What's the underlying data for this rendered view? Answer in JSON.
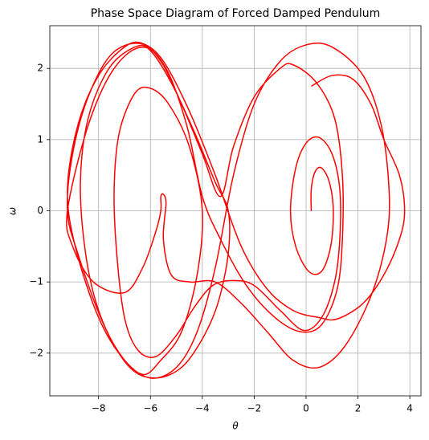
{
  "chart_data": {
    "type": "line",
    "title": "Phase Space Diagram of Forced Damped Pendulum",
    "xlabel": "θ",
    "ylabel": "ω",
    "xlim": [
      -9.88,
      4.43
    ],
    "ylim": [
      -2.6,
      2.6
    ],
    "xticks": [
      {
        "value": -8,
        "label": "−8"
      },
      {
        "value": -6,
        "label": "−6"
      },
      {
        "value": -4,
        "label": "−4"
      },
      {
        "value": -2,
        "label": "−2"
      },
      0,
      2,
      4
    ],
    "yticks": [
      {
        "value": -2,
        "label": "−2"
      },
      {
        "value": -1,
        "label": "−1"
      },
      0,
      1,
      2
    ],
    "grid": true,
    "x": [
      0.2,
      0.2,
      0.35,
      0.6,
      0.9,
      1.05,
      0.95,
      0.6,
      0.1,
      -0.4,
      -0.6,
      -0.4,
      0,
      0.5,
      1.0,
      1.3,
      1.3,
      1.1,
      0.6,
      -0.1,
      -1.0,
      -2.0,
      -2.8,
      -3.6,
      -4.3,
      -5.0,
      -5.8,
      -6.5,
      -7.0,
      -7.3,
      -7.4,
      -7.2,
      -6.6,
      -6.0,
      -5.3,
      -4.5,
      -4.0,
      -4.2,
      -4.8,
      -5.6,
      -6.3,
      -7.2,
      -8.0,
      -8.5,
      -8.7,
      -8.4,
      -7.6,
      -6.6,
      -6.0,
      -5.2,
      -4.3,
      -3.5,
      -3.0,
      -3.0,
      -3.4,
      -4.0,
      -4.8,
      -5.8,
      -6.8,
      -7.8,
      -8.8,
      -9.2,
      -9.0,
      -8.4,
      -7.5,
      -6.4,
      -5.6,
      -4.8,
      -4.0,
      -3.3,
      -2.8,
      -2.0,
      -1.0,
      -0.5,
      0.4,
      1.1,
      1.4,
      1.4,
      1.2,
      0.6,
      -0.2,
      -1.2,
      -2.3,
      -3.3,
      -4.0,
      -4.6,
      -5.4,
      -6.3,
      -7.4,
      -8.4,
      -9.2,
      -9.0,
      -8.2,
      -7.0,
      -6.3,
      -5.8,
      -5.6,
      -5.6,
      -5.5,
      -5.4,
      -5.5,
      -5.2,
      -4.5,
      -3.5,
      -2.5,
      -1.5,
      -0.5,
      0.5,
      1.5,
      2.5,
      3.1,
      3.2,
      2.9,
      2.2,
      1.0,
      0,
      -1.0,
      -2.0,
      -2.8,
      -3.5,
      -4.2,
      -5.0,
      -6.0,
      -7.0,
      -8.0,
      -8.9,
      -9.2,
      -8.8,
      -8.0,
      -7.0,
      -6.3,
      -5.5,
      -4.5,
      -3.5,
      -2.5,
      -1.5,
      -0.5,
      0.5,
      1.2,
      2.2,
      3.0,
      3.6,
      3.8,
      3.6,
      3.0,
      2.5,
      1.8,
      1.0,
      0.2
    ],
    "series": [
      {
        "color": "#ff0000",
        "values": [
          0,
          0.3,
          0.55,
          0.6,
          0.4,
          0,
          -0.5,
          -0.85,
          -0.85,
          -0.5,
          0,
          0.6,
          0.95,
          1.03,
          0.8,
          0.3,
          -0.4,
          -1.0,
          -1.5,
          -1.68,
          -1.4,
          -1.05,
          -0.98,
          -1.05,
          -1.35,
          -1.75,
          -2.05,
          -1.95,
          -1.5,
          -0.6,
          0.3,
          1.1,
          1.65,
          1.72,
          1.5,
          0.9,
          0,
          -0.9,
          -1.7,
          -2.1,
          -2.3,
          -2.0,
          -1.4,
          -0.6,
          0.4,
          1.3,
          2.0,
          2.3,
          2.25,
          1.8,
          1.1,
          0.4,
          0,
          -0.6,
          -1.3,
          -1.8,
          -2.2,
          -2.35,
          -2.2,
          -1.6,
          -0.6,
          0,
          0.8,
          1.6,
          2.2,
          2.35,
          2.1,
          1.5,
          0.8,
          0.2,
          0.9,
          1.6,
          2.0,
          2.05,
          1.8,
          1.3,
          0.5,
          -0.4,
          -1.1,
          -1.6,
          -1.7,
          -1.5,
          -1.05,
          -0.4,
          0.2,
          1.2,
          2.0,
          2.3,
          2.0,
          1.2,
          0,
          -0.5,
          -1.0,
          -1.15,
          -0.8,
          -0.3,
          0,
          0.2,
          0.23,
          0.1,
          -0.4,
          -0.9,
          -1.0,
          -1.0,
          -1.3,
          -1.7,
          -2.1,
          -2.2,
          -1.9,
          -1.2,
          -0.4,
          0.3,
          1.2,
          1.9,
          2.3,
          2.33,
          2.1,
          1.5,
          0.5,
          -0.8,
          -1.7,
          -2.2,
          -2.35,
          -2.1,
          -1.5,
          -0.5,
          0.3,
          1.2,
          1.9,
          2.3,
          2.35,
          2.1,
          1.4,
          0.5,
          -0.5,
          -1.1,
          -1.4,
          -1.5,
          -1.52,
          -1.3,
          -0.9,
          -0.4,
          0,
          0.5,
          1.0,
          1.5,
          1.85,
          1.9,
          1.75
        ]
      }
    ]
  }
}
